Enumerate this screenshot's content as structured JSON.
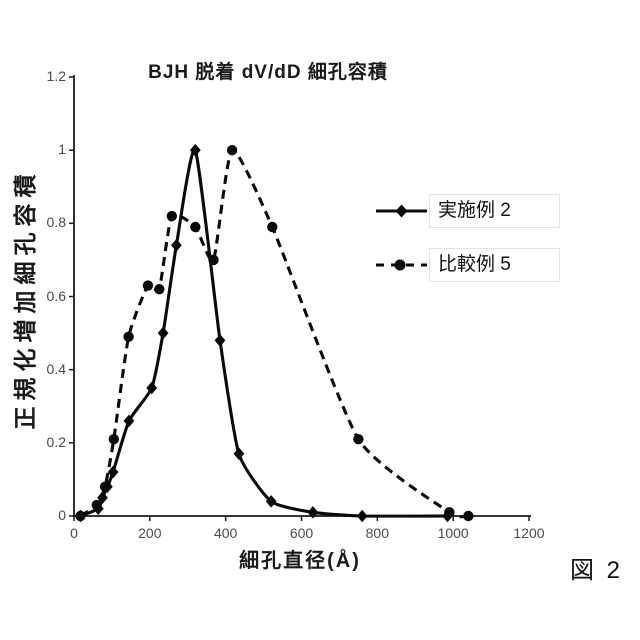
{
  "figure_label": "図 2",
  "chart_data": {
    "type": "line",
    "title": "BJH 脱着 dV/dD 細孔容積",
    "xlabel": "細孔直径(Å)",
    "ylabel": "正規化増加細孔容積",
    "xlim": [
      0,
      1200
    ],
    "ylim": [
      0,
      1.2
    ],
    "x_ticks": [
      0,
      200,
      400,
      600,
      800,
      1000,
      1200
    ],
    "x_tick_labels": [
      "0",
      "200",
      "400",
      "600",
      "800",
      "1000",
      "1200"
    ],
    "y_ticks": [
      0,
      0.2,
      0.4,
      0.6,
      0.8,
      1,
      1.2
    ],
    "y_tick_labels": [
      "0",
      "0.2",
      "0.4",
      "0.6",
      "0.8",
      "1",
      "1.2"
    ],
    "grid": false,
    "legend_position": "right-inside",
    "line_color": "#0a0a0a",
    "series": [
      {
        "name": "実施例 2",
        "line": "solid",
        "marker": "diamond",
        "points": [
          [
            17,
            0
          ],
          [
            64,
            0.02
          ],
          [
            75,
            0.05
          ],
          [
            88,
            0.08
          ],
          [
            103,
            0.12
          ],
          [
            145,
            0.26
          ],
          [
            205,
            0.35
          ],
          [
            235,
            0.5
          ],
          [
            270,
            0.74
          ],
          [
            320,
            1.0
          ],
          [
            385,
            0.48
          ],
          [
            435,
            0.17
          ],
          [
            520,
            0.04
          ],
          [
            630,
            0.01
          ],
          [
            760,
            0
          ],
          [
            985,
            0
          ]
        ]
      },
      {
        "name": "比較例 5",
        "line": "dashed",
        "marker": "circle",
        "points": [
          [
            17,
            0
          ],
          [
            60,
            0.03
          ],
          [
            82,
            0.08
          ],
          [
            105,
            0.21
          ],
          [
            144,
            0.49
          ],
          [
            195,
            0.63
          ],
          [
            225,
            0.62
          ],
          [
            258,
            0.82
          ],
          [
            320,
            0.79
          ],
          [
            368,
            0.7
          ],
          [
            417,
            1.0
          ],
          [
            523,
            0.79
          ],
          [
            750,
            0.21
          ],
          [
            990,
            0.01
          ],
          [
            1040,
            0
          ]
        ]
      }
    ]
  }
}
